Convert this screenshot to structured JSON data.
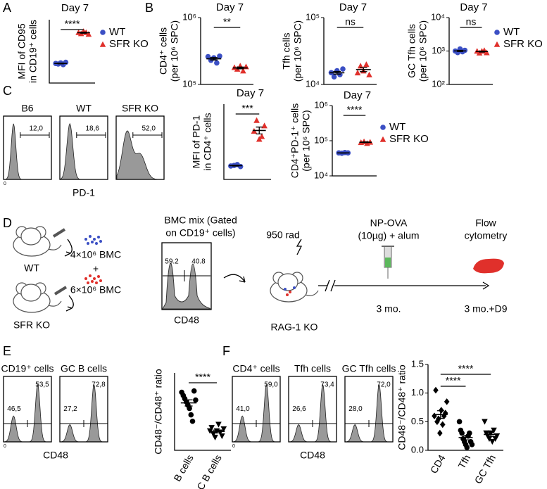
{
  "panels": [
    "A",
    "B",
    "C",
    "D",
    "E",
    "F"
  ],
  "chart_data": [
    {
      "type": "dotplot",
      "title": "Day 7",
      "ylabel": [
        "MFI of CD95",
        "in CD19⁺ cells"
      ],
      "ylim": [
        0,
        55
      ],
      "log": false,
      "legend": true,
      "xlabels": false,
      "significance": [
        "****"
      ],
      "series": [
        {
          "name": "WT",
          "color": "#3b4fc4",
          "marker": "circle",
          "values": [
            17,
            16.5,
            17.5,
            16,
            18
          ]
        },
        {
          "name": "SFR KO",
          "color": "#e0302b",
          "marker": "triangle",
          "values": [
            44,
            43,
            45,
            44,
            42.5
          ]
        }
      ]
    },
    {
      "type": "dotplot",
      "title": "Day 7",
      "ylabel": [
        "CD4⁺ cells",
        "(per 10⁶ SPC)"
      ],
      "ylim": [
        100000,
        1000000
      ],
      "log": true,
      "legend": false,
      "xlabels": false,
      "yticks": [
        {
          "value": 100000,
          "label": "10⁵"
        },
        {
          "value": 1000000,
          "label": "10⁶"
        }
      ],
      "significance": [
        "**"
      ],
      "series": [
        {
          "name": "WT",
          "color": "#3b4fc4",
          "marker": "circle",
          "values": [
            260000,
            230000,
            250000,
            210000,
            265000
          ]
        },
        {
          "name": "SFR KO",
          "color": "#e0302b",
          "marker": "triangle",
          "values": [
            180000,
            170000,
            190000,
            160000,
            185000
          ]
        }
      ]
    },
    {
      "type": "dotplot",
      "title": "Day 7",
      "ylabel": [
        "Tfh cells",
        "(per 10⁶ SPC)"
      ],
      "ylim": [
        10000,
        100000
      ],
      "log": true,
      "legend": false,
      "xlabels": false,
      "yticks": [
        {
          "value": 10000,
          "label": "10⁴"
        },
        {
          "value": 100000,
          "label": "10⁵"
        }
      ],
      "significance": [
        "ns"
      ],
      "series": [
        {
          "name": "WT",
          "color": "#3b4fc4",
          "marker": "circle",
          "values": [
            15000,
            13000,
            16000,
            14000,
            17000
          ]
        },
        {
          "name": "SFR KO",
          "color": "#e0302b",
          "marker": "triangle",
          "values": [
            15000,
            19000,
            16000,
            20000,
            14000
          ]
        }
      ]
    },
    {
      "type": "dotplot",
      "title": "Day 7",
      "ylabel": [
        "GC Tfh cells",
        "(per 10⁶ SPC)"
      ],
      "ylim": [
        100,
        10000
      ],
      "log": true,
      "legend": true,
      "xlabels": false,
      "yticks": [
        {
          "value": 100,
          "label": "10²"
        },
        {
          "value": 1000,
          "label": "10³"
        },
        {
          "value": 10000,
          "label": "10⁴"
        }
      ],
      "significance": [
        "ns"
      ],
      "series": [
        {
          "name": "WT",
          "color": "#3b4fc4",
          "marker": "circle",
          "values": [
            1000,
            900,
            1150,
            950,
            1050
          ]
        },
        {
          "name": "SFR KO",
          "color": "#e0302b",
          "marker": "triangle",
          "values": [
            1000,
            880,
            1000,
            1050,
            900
          ]
        }
      ]
    },
    {
      "type": "dotplot",
      "title": "Day 7",
      "ylabel": [
        "MFI of PD-1",
        "in CD4⁺ cells"
      ],
      "ylim": [
        0,
        28
      ],
      "log": false,
      "legend": false,
      "xlabels": false,
      "significance": [
        "***"
      ],
      "series": [
        {
          "name": "WT",
          "color": "#3b4fc4",
          "marker": "circle",
          "values": [
            5,
            5.2,
            5.5,
            4.8
          ]
        },
        {
          "name": "SFR KO",
          "color": "#e0302b",
          "marker": "triangle",
          "values": [
            18,
            22,
            15,
            16,
            20
          ]
        }
      ]
    },
    {
      "type": "dotplot",
      "title": "Day 7",
      "ylabel": [
        "CD4⁺PD-1⁺ cells",
        "(per 10⁶ SPC)"
      ],
      "ylim": [
        10000,
        1000000
      ],
      "log": true,
      "legend": true,
      "xlabels": false,
      "yticks": [
        {
          "value": 10000,
          "label": "10⁴"
        },
        {
          "value": 100000,
          "label": "10⁵"
        },
        {
          "value": 1000000,
          "label": "10⁶"
        }
      ],
      "significance": [
        "****"
      ],
      "series": [
        {
          "name": "WT",
          "color": "#3b4fc4",
          "marker": "circle",
          "values": [
            45000,
            44000,
            46000,
            45000
          ]
        },
        {
          "name": "SFR KO",
          "color": "#e0302b",
          "marker": "triangle",
          "values": [
            90000,
            95000,
            85000,
            92000
          ]
        }
      ]
    },
    {
      "type": "dotplot",
      "ylabel": [
        "CD48⁻/CD48⁺ ratio"
      ],
      "ylim": [
        0,
        1.2
      ],
      "log": false,
      "legend": false,
      "xlabels": true,
      "significance": [
        "****"
      ],
      "series": [
        {
          "name": "B cells",
          "color": "#000000",
          "marker": "circle",
          "values": [
            0.9,
            0.85,
            0.8,
            0.75,
            0.7,
            0.65,
            0.55,
            0.45,
            0.92,
            0.78
          ]
        },
        {
          "name": "GC B cells",
          "color": "#000000",
          "marker": "triangle-down",
          "values": [
            0.3,
            0.35,
            0.25,
            0.2,
            0.3,
            0.4,
            0.28,
            0.22,
            0.33
          ]
        }
      ]
    },
    {
      "type": "dotplot",
      "ylabel": [
        "CD48⁻/CD48⁺ ratio"
      ],
      "ylim": [
        0,
        1.5
      ],
      "log": false,
      "legend": false,
      "xlabels": true,
      "yticks": [
        {
          "value": 0,
          "label": "0.0"
        },
        0.5,
        {
          "value": 1,
          "label": "1.0"
        },
        1.5
      ],
      "significance": [
        "****",
        "****"
      ],
      "series": [
        {
          "name": "CD4",
          "color": "#000000",
          "marker": "diamond",
          "values": [
            0.6,
            1.05,
            0.5,
            0.55,
            0.3,
            0.7,
            0.45,
            0.6,
            0.65,
            0.85
          ]
        },
        {
          "name": "Tfh",
          "color": "#000000",
          "marker": "circle",
          "values": [
            0.5,
            0.35,
            0.3,
            0.2,
            0.15,
            0.1,
            0.05,
            0.25,
            0.3,
            0.15,
            0.1
          ]
        },
        {
          "name": "GC Tfh",
          "color": "#000000",
          "marker": "triangle-down",
          "values": [
            0.5,
            0.3,
            0.25,
            0.2,
            0.3,
            0.15,
            0.35,
            0.2,
            0.25
          ]
        }
      ]
    }
  ],
  "histograms": [
    {
      "axis": "PD-1",
      "origin": "0",
      "plots": [
        {
          "title": "B6",
          "gates": [
            "12,0"
          ]
        },
        {
          "title": "WT",
          "gates": [
            "18,6"
          ]
        },
        {
          "title": "SFR KO",
          "gates": [
            "52,0"
          ]
        }
      ]
    },
    {
      "axis": "CD48",
      "origin": "0",
      "plots": [
        {
          "title": "CD19⁺ cells",
          "gates": [
            "46,5",
            "53,5"
          ]
        },
        {
          "title": "GC B cells",
          "gates": [
            "27,2",
            "72,8"
          ]
        }
      ]
    },
    {
      "axis": "CD48",
      "origin": "0",
      "plots": [
        {
          "title": "CD4⁺ cells",
          "gates": [
            "41,0",
            "59,0"
          ]
        },
        {
          "title": "Tfh cells",
          "gates": [
            "26,6",
            "73,4"
          ]
        },
        {
          "title": "GC Tfh cells",
          "gates": [
            "28,0",
            "72,0"
          ]
        }
      ]
    }
  ],
  "diagram": {
    "donor1": "WT",
    "cells1": "4×10⁶ BMC",
    "plus": "+",
    "donor2": "SFR KO",
    "cells2": "6×10⁶ BMC",
    "mix_title": [
      "BMC mix (Gated",
      "on CD19⁺ cells)"
    ],
    "mix_gates": [
      "59.2",
      "40.8"
    ],
    "mix_axis": "CD48",
    "irradiation": "950 rad",
    "recipient": "RAG-1 KO",
    "immunization": [
      "NP-OVA",
      "(10µg) + alum"
    ],
    "time1": "3 mo.",
    "readout": [
      "Flow",
      "cytometry"
    ],
    "time2": "3 mo.+D9"
  }
}
